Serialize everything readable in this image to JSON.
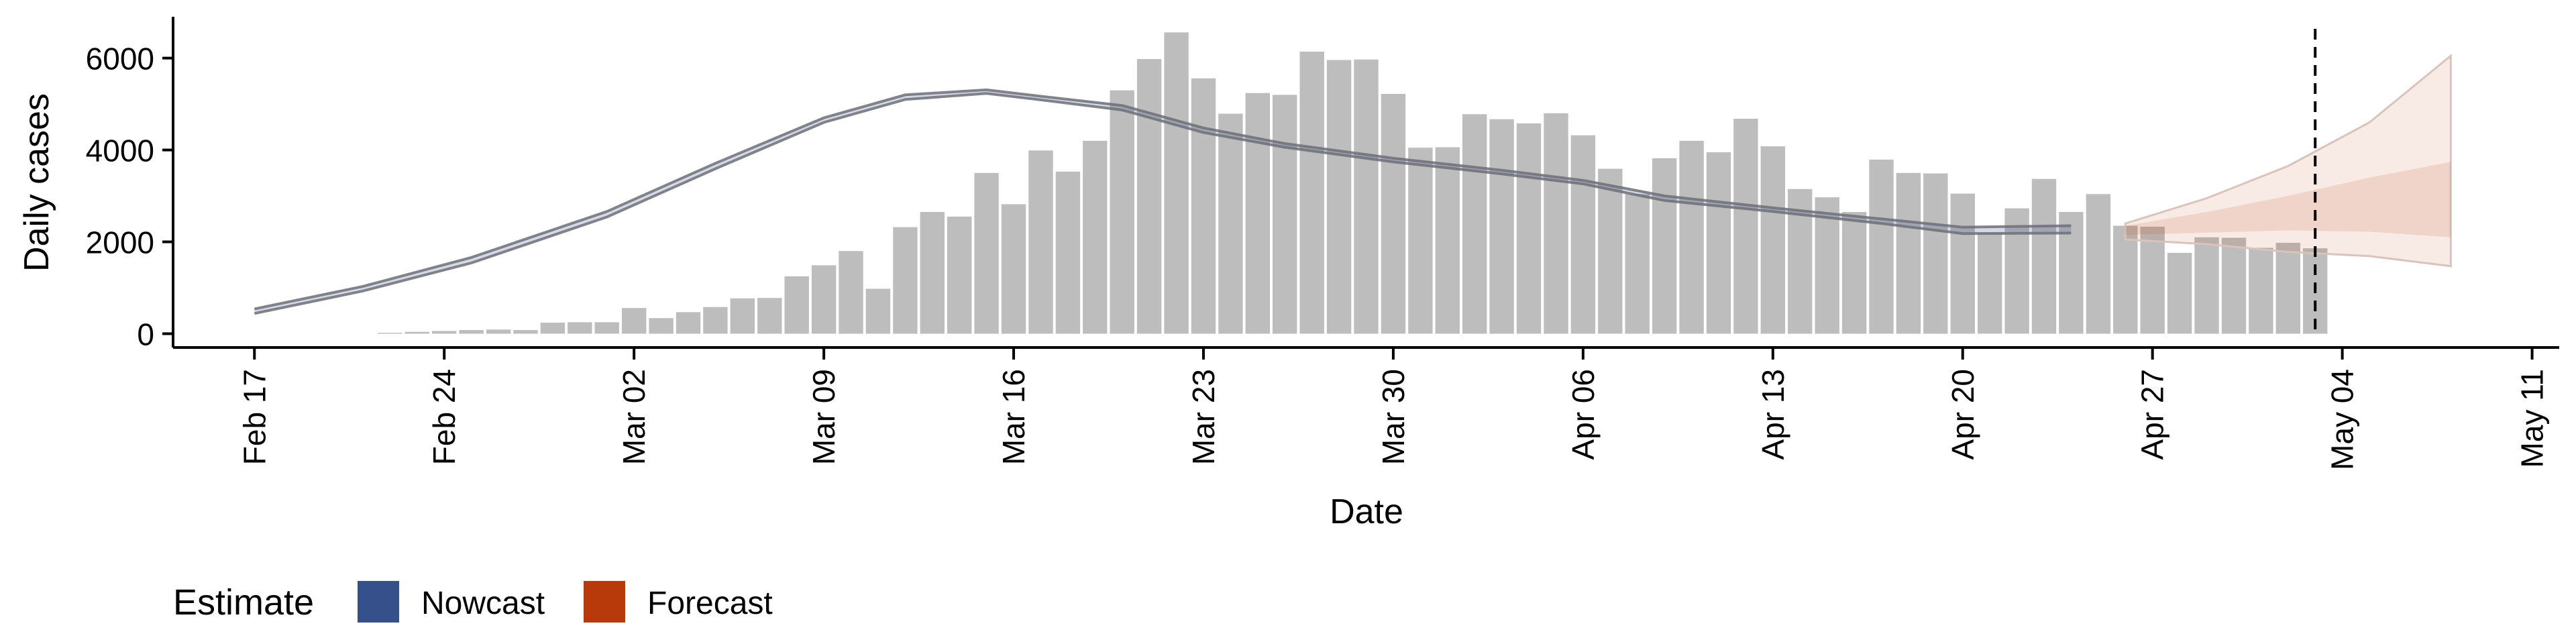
{
  "chart_data": {
    "type": "bar",
    "xlabel": "Date",
    "ylabel": "Daily cases",
    "xlim": [
      "2020-02-14",
      "2020-05-12"
    ],
    "ylim": [
      -300,
      6900
    ],
    "x_ticks": [
      "2020-02-17",
      "2020-02-24",
      "2020-03-02",
      "2020-03-09",
      "2020-03-16",
      "2020-03-23",
      "2020-03-30",
      "2020-04-06",
      "2020-04-13",
      "2020-04-20",
      "2020-04-27",
      "2020-05-04",
      "2020-05-11"
    ],
    "x_tick_labels": [
      "Feb 17",
      "Feb 24",
      "Mar 02",
      "Mar 09",
      "Mar 16",
      "Mar 23",
      "Mar 30",
      "Apr 06",
      "Apr 13",
      "Apr 20",
      "Apr 27",
      "May 04",
      "May 11"
    ],
    "y_ticks": [
      0,
      2000,
      4000,
      6000
    ],
    "y_tick_labels": [
      "0",
      "2000",
      "4000",
      "6000"
    ],
    "grid": false,
    "legend": {
      "title": "Estimate",
      "position": "bottom-left",
      "entries": [
        {
          "label": "Nowcast",
          "color": "#35508a"
        },
        {
          "label": "Forecast",
          "color": "#b83a0a"
        }
      ]
    },
    "vertical_line": {
      "date": "2020-05-03",
      "style": "dashed"
    },
    "bars": {
      "color": "#bdbdbd",
      "dates": [
        "2020-02-22",
        "2020-02-23",
        "2020-02-24",
        "2020-02-25",
        "2020-02-26",
        "2020-02-27",
        "2020-02-28",
        "2020-02-29",
        "2020-03-01",
        "2020-03-02",
        "2020-03-03",
        "2020-03-04",
        "2020-03-05",
        "2020-03-06",
        "2020-03-07",
        "2020-03-08",
        "2020-03-09",
        "2020-03-10",
        "2020-03-11",
        "2020-03-12",
        "2020-03-13",
        "2020-03-14",
        "2020-03-15",
        "2020-03-16",
        "2020-03-17",
        "2020-03-18",
        "2020-03-19",
        "2020-03-20",
        "2020-03-21",
        "2020-03-22",
        "2020-03-23",
        "2020-03-24",
        "2020-03-25",
        "2020-03-26",
        "2020-03-27",
        "2020-03-28",
        "2020-03-29",
        "2020-03-30",
        "2020-03-31",
        "2020-04-01",
        "2020-04-02",
        "2020-04-03",
        "2020-04-04",
        "2020-04-05",
        "2020-04-06",
        "2020-04-07",
        "2020-04-08",
        "2020-04-09",
        "2020-04-10",
        "2020-04-11",
        "2020-04-12",
        "2020-04-13",
        "2020-04-14",
        "2020-04-15",
        "2020-04-16",
        "2020-04-17",
        "2020-04-18",
        "2020-04-19",
        "2020-04-20",
        "2020-04-21",
        "2020-04-22",
        "2020-04-23",
        "2020-04-24",
        "2020-04-25",
        "2020-04-26",
        "2020-04-27",
        "2020-04-28",
        "2020-04-29",
        "2020-04-30",
        "2020-05-01",
        "2020-05-02",
        "2020-05-03"
      ],
      "values": [
        20,
        40,
        60,
        80,
        90,
        80,
        240,
        250,
        250,
        560,
        340,
        470,
        580,
        770,
        780,
        1250,
        1490,
        1800,
        980,
        2320,
        2650,
        2550,
        3500,
        2820,
        3990,
        3530,
        4200,
        5300,
        5980,
        6560,
        5560,
        4790,
        5240,
        5200,
        6140,
        5960,
        5970,
        5220,
        4050,
        4060,
        4780,
        4670,
        4580,
        4800,
        4320,
        3590,
        3040,
        3820,
        4200,
        3950,
        4680,
        4080,
        3150,
        2970,
        2650,
        3790,
        3500,
        3490,
        3050,
        2200,
        2730,
        3370,
        2650,
        3040,
        2350,
        2330,
        1760,
        2100,
        2090,
        1870,
        1980,
        1860
      ]
    },
    "series": [
      {
        "color": "#6e6e78",
        "band_color": "#35508a",
        "dates": [
          "2020-02-17",
          "2020-02-21",
          "2020-02-25",
          "2020-03-01",
          "2020-03-05",
          "2020-03-09",
          "2020-03-12",
          "2020-03-15",
          "2020-03-17",
          "2020-03-20",
          "2020-03-23",
          "2020-03-26",
          "2020-03-30",
          "2020-04-03",
          "2020-04-06",
          "2020-04-09",
          "2020-04-13",
          "2020-04-17",
          "2020-04-20",
          "2020-04-24"
        ],
        "values": [
          490,
          980,
          1600,
          2600,
          3650,
          4650,
          5150,
          5270,
          5130,
          4920,
          4430,
          4100,
          3780,
          3520,
          3300,
          2950,
          2700,
          2450,
          2250,
          2270
        ],
        "lower": [
          440,
          930,
          1540,
          2540,
          3590,
          4600,
          5100,
          5230,
          5090,
          4870,
          4380,
          4060,
          3740,
          3480,
          3260,
          2900,
          2660,
          2400,
          2180,
          2190
        ],
        "upper": [
          540,
          1030,
          1660,
          2660,
          3710,
          4700,
          5200,
          5310,
          5170,
          4970,
          4480,
          4140,
          3820,
          3560,
          3340,
          3000,
          2740,
          2500,
          2320,
          2350
        ]
      },
      {
        "color": "#d8c4bc",
        "band_color": "#b83a0a",
        "dates": [
          "2020-04-26",
          "2020-04-29",
          "2020-05-02",
          "2020-05-05",
          "2020-05-08"
        ],
        "values": [
          2300,
          2450,
          2650,
          2900,
          3200
        ],
        "lower": [
          2050,
          1950,
          1780,
          1690,
          1470
        ],
        "upper": [
          2400,
          2950,
          3650,
          4600,
          6050
        ],
        "inner_lower": [
          2150,
          2200,
          2250,
          2220,
          2100
        ],
        "inner_upper": [
          2350,
          2650,
          3000,
          3400,
          3740
        ]
      }
    ]
  }
}
